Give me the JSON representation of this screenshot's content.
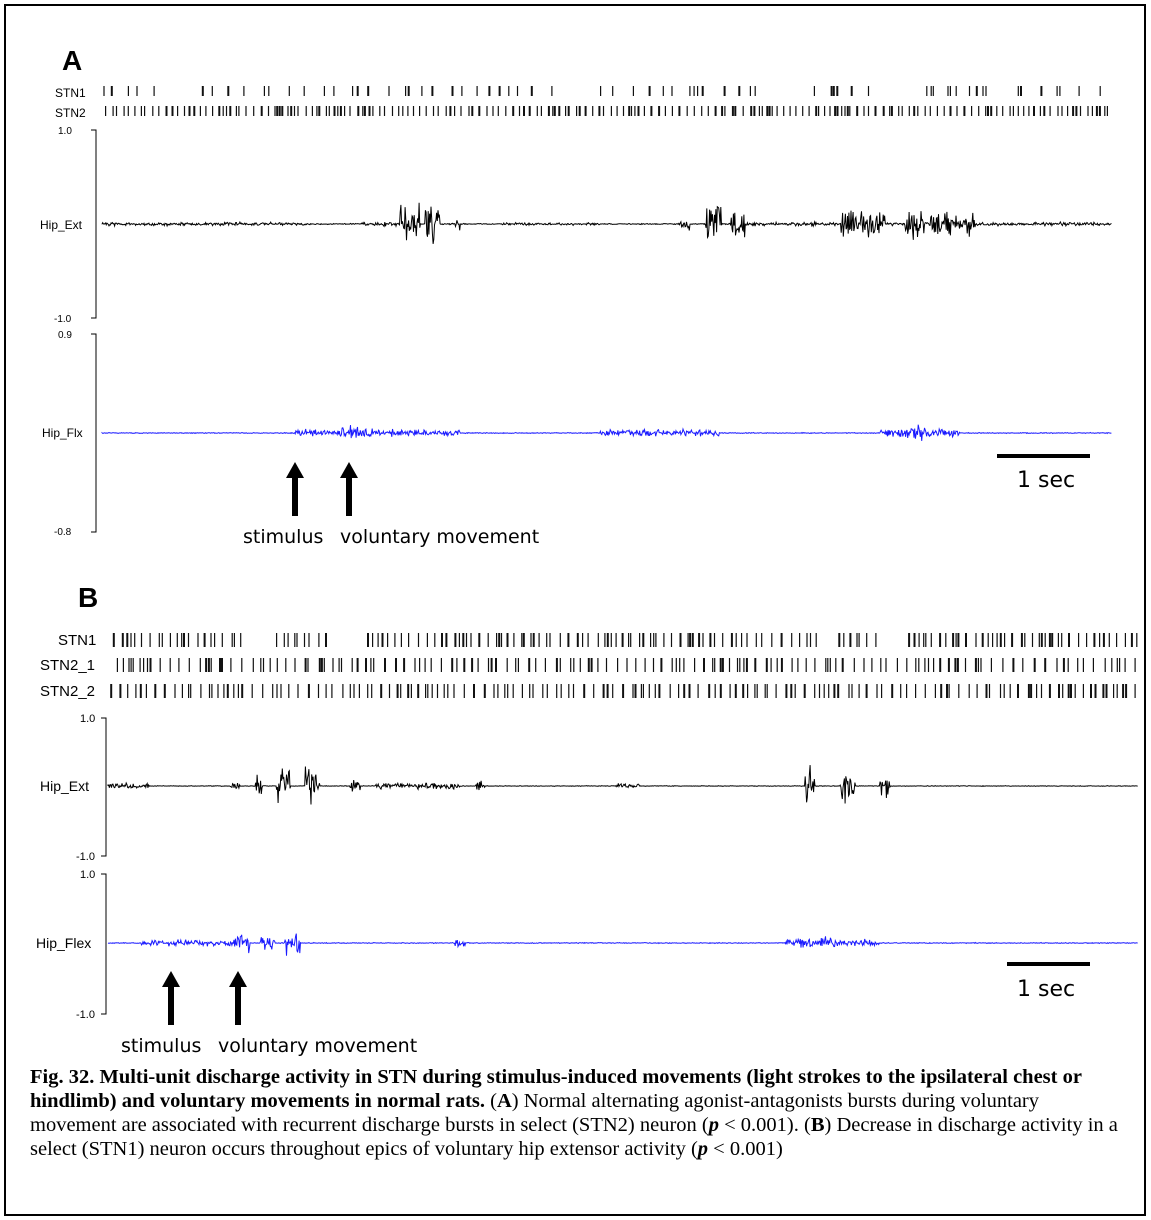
{
  "panels": [
    {
      "id": "A",
      "label": "A",
      "raster_labels": [
        "STN1",
        "STN2"
      ],
      "ext": {
        "label": "Hip_Ext",
        "ymax": "1.0",
        "ymin": "-1.0"
      },
      "flx": {
        "label": "Hip_Flx",
        "ymax": "0.9",
        "ymin": "-0.8"
      },
      "scale_label": "1 sec",
      "arrow_labels": {
        "stimulus": "stimulus",
        "voluntary": "voluntary movement"
      }
    },
    {
      "id": "B",
      "label": "B",
      "raster_labels": [
        "STN1",
        "STN2_1",
        "STN2_2"
      ],
      "ext": {
        "label": "Hip_Ext",
        "ymax": "1.0",
        "ymin": "-1.0"
      },
      "flx": {
        "label": "Hip_Flex",
        "ymax": "1.0",
        "ymin": "-1.0"
      },
      "scale_label": "1 sec",
      "arrow_labels": {
        "stimulus": "stimulus",
        "voluntary": "voluntary movement"
      }
    }
  ],
  "colors": {
    "emg_ext": "#000000",
    "emg_flx": "#1a1aff",
    "raster": "#111111"
  },
  "caption": {
    "bold": "Fig. 32. Multi-unit discharge activity in STN during stimulus-induced movements (light strokes to the ipsilateral chest or hindlimb) and voluntary movements in normal rats.",
    "part1_open": " (",
    "part1_letter": "A",
    "part1_text": ") Normal alternating agonist-antagonists bursts during voluntary movement are associated with recurrent discharge bursts in select (STN2) neuron (",
    "p1": "p",
    "p1_val": " < 0.001). (",
    "part2_letter": "B",
    "part2_text": ") Decrease in discharge activity in a select (STN1) neuron occurs throughout epics of voluntary hip extensor activity (",
    "p2": "p",
    "p2_val": " < 0.001)"
  }
}
